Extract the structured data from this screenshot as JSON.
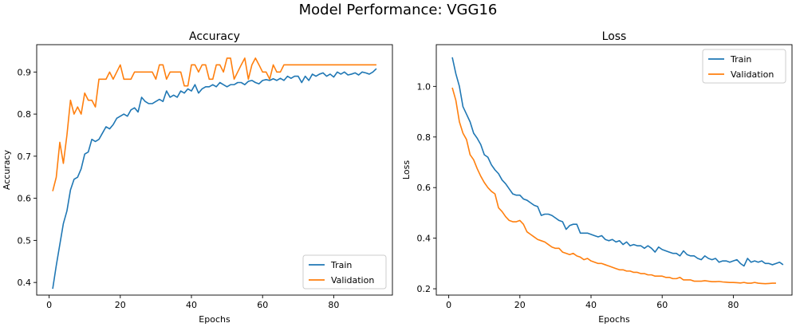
{
  "figure_title": "Model Performance: VGG16",
  "colors": {
    "train": "#1f77b4",
    "validation": "#ff7f0e"
  },
  "chart_data": [
    {
      "type": "line",
      "title": "Accuracy",
      "xlabel": "Epochs",
      "ylabel": "Accuracy",
      "xlim": [
        -3.5,
        96.5
      ],
      "ylim": [
        0.37,
        0.965
      ],
      "xticks": [
        0,
        20,
        40,
        60,
        80
      ],
      "yticks": [
        0.4,
        0.5,
        0.6,
        0.7,
        0.8,
        0.9
      ],
      "ytick_labels": [
        "0.4",
        "0.5",
        "0.6",
        "0.7",
        "0.8",
        "0.9"
      ],
      "legend_loc": "lower right",
      "series": [
        {
          "name": "Train",
          "color": "#1f77b4",
          "start_epoch": 1,
          "values": [
            0.385,
            0.44,
            0.49,
            0.54,
            0.57,
            0.62,
            0.645,
            0.65,
            0.67,
            0.705,
            0.71,
            0.74,
            0.735,
            0.74,
            0.755,
            0.77,
            0.765,
            0.775,
            0.79,
            0.795,
            0.8,
            0.795,
            0.81,
            0.815,
            0.805,
            0.84,
            0.83,
            0.825,
            0.825,
            0.83,
            0.835,
            0.83,
            0.855,
            0.84,
            0.845,
            0.84,
            0.855,
            0.85,
            0.86,
            0.855,
            0.87,
            0.85,
            0.86,
            0.865,
            0.865,
            0.87,
            0.865,
            0.875,
            0.87,
            0.865,
            0.87,
            0.87,
            0.875,
            0.875,
            0.87,
            0.878,
            0.88,
            0.875,
            0.872,
            0.88,
            0.882,
            0.88,
            0.884,
            0.88,
            0.885,
            0.88,
            0.89,
            0.885,
            0.89,
            0.89,
            0.875,
            0.89,
            0.88,
            0.895,
            0.89,
            0.895,
            0.898,
            0.89,
            0.895,
            0.888,
            0.9,
            0.895,
            0.9,
            0.893,
            0.895,
            0.898,
            0.893,
            0.9,
            0.898,
            0.895,
            0.9,
            0.908
          ]
        },
        {
          "name": "Validation",
          "color": "#ff7f0e",
          "start_epoch": 1,
          "values": [
            0.617,
            0.65,
            0.733,
            0.683,
            0.75,
            0.833,
            0.8,
            0.817,
            0.8,
            0.85,
            0.833,
            0.833,
            0.817,
            0.883,
            0.883,
            0.883,
            0.9,
            0.883,
            0.9,
            0.917,
            0.883,
            0.883,
            0.883,
            0.9,
            0.9,
            0.9,
            0.9,
            0.9,
            0.9,
            0.883,
            0.917,
            0.917,
            0.883,
            0.9,
            0.9,
            0.9,
            0.9,
            0.867,
            0.867,
            0.917,
            0.917,
            0.9,
            0.917,
            0.917,
            0.883,
            0.883,
            0.917,
            0.917,
            0.9,
            0.933,
            0.933,
            0.883,
            0.9,
            0.917,
            0.933,
            0.883,
            0.917,
            0.933,
            0.917,
            0.9,
            0.9,
            0.883,
            0.917,
            0.9,
            0.9,
            0.917,
            0.917,
            0.917,
            0.917,
            0.917,
            0.917,
            0.917,
            0.917,
            0.917,
            0.917,
            0.917,
            0.917,
            0.917,
            0.917,
            0.917,
            0.917,
            0.917,
            0.917,
            0.917,
            0.917,
            0.917,
            0.917,
            0.917,
            0.917,
            0.917,
            0.917,
            0.917
          ]
        }
      ]
    },
    {
      "type": "line",
      "title": "Loss",
      "xlabel": "Epochs",
      "ylabel": "Loss",
      "xlim": [
        -3.5,
        96.5
      ],
      "ylim": [
        0.175,
        1.165
      ],
      "xticks": [
        0,
        20,
        40,
        60,
        80
      ],
      "yticks": [
        0.2,
        0.4,
        0.6,
        0.8,
        1.0
      ],
      "ytick_labels": [
        "0.2",
        "0.4",
        "0.6",
        "0.8",
        "1.0"
      ],
      "legend_loc": "upper right",
      "series": [
        {
          "name": "Train",
          "color": "#1f77b4",
          "start_epoch": 1,
          "values": [
            1.115,
            1.05,
            1.0,
            0.92,
            0.89,
            0.86,
            0.815,
            0.795,
            0.77,
            0.73,
            0.72,
            0.69,
            0.67,
            0.655,
            0.63,
            0.615,
            0.595,
            0.575,
            0.57,
            0.57,
            0.555,
            0.55,
            0.54,
            0.53,
            0.525,
            0.49,
            0.495,
            0.495,
            0.49,
            0.48,
            0.47,
            0.465,
            0.435,
            0.45,
            0.455,
            0.455,
            0.42,
            0.42,
            0.42,
            0.415,
            0.41,
            0.405,
            0.41,
            0.395,
            0.39,
            0.395,
            0.385,
            0.39,
            0.375,
            0.385,
            0.37,
            0.375,
            0.37,
            0.37,
            0.36,
            0.37,
            0.36,
            0.345,
            0.365,
            0.355,
            0.35,
            0.345,
            0.34,
            0.34,
            0.33,
            0.35,
            0.335,
            0.33,
            0.33,
            0.32,
            0.315,
            0.33,
            0.32,
            0.315,
            0.32,
            0.305,
            0.31,
            0.31,
            0.305,
            0.31,
            0.315,
            0.3,
            0.29,
            0.32,
            0.305,
            0.31,
            0.305,
            0.31,
            0.3,
            0.3,
            0.295,
            0.3,
            0.305,
            0.295
          ]
        },
        {
          "name": "Validation",
          "color": "#ff7f0e",
          "start_epoch": 1,
          "values": [
            0.995,
            0.945,
            0.86,
            0.815,
            0.79,
            0.73,
            0.71,
            0.675,
            0.645,
            0.62,
            0.6,
            0.585,
            0.575,
            0.52,
            0.505,
            0.485,
            0.47,
            0.465,
            0.465,
            0.47,
            0.455,
            0.425,
            0.415,
            0.405,
            0.395,
            0.39,
            0.385,
            0.375,
            0.365,
            0.36,
            0.36,
            0.345,
            0.34,
            0.335,
            0.34,
            0.33,
            0.325,
            0.315,
            0.32,
            0.31,
            0.305,
            0.3,
            0.3,
            0.295,
            0.29,
            0.285,
            0.28,
            0.275,
            0.275,
            0.27,
            0.27,
            0.265,
            0.265,
            0.26,
            0.26,
            0.255,
            0.255,
            0.25,
            0.25,
            0.25,
            0.245,
            0.245,
            0.24,
            0.24,
            0.245,
            0.235,
            0.235,
            0.235,
            0.23,
            0.23,
            0.23,
            0.232,
            0.23,
            0.228,
            0.228,
            0.229,
            0.227,
            0.226,
            0.225,
            0.225,
            0.224,
            0.223,
            0.225,
            0.222,
            0.222,
            0.225,
            0.222,
            0.221,
            0.22,
            0.221,
            0.222,
            0.222
          ]
        }
      ]
    }
  ]
}
